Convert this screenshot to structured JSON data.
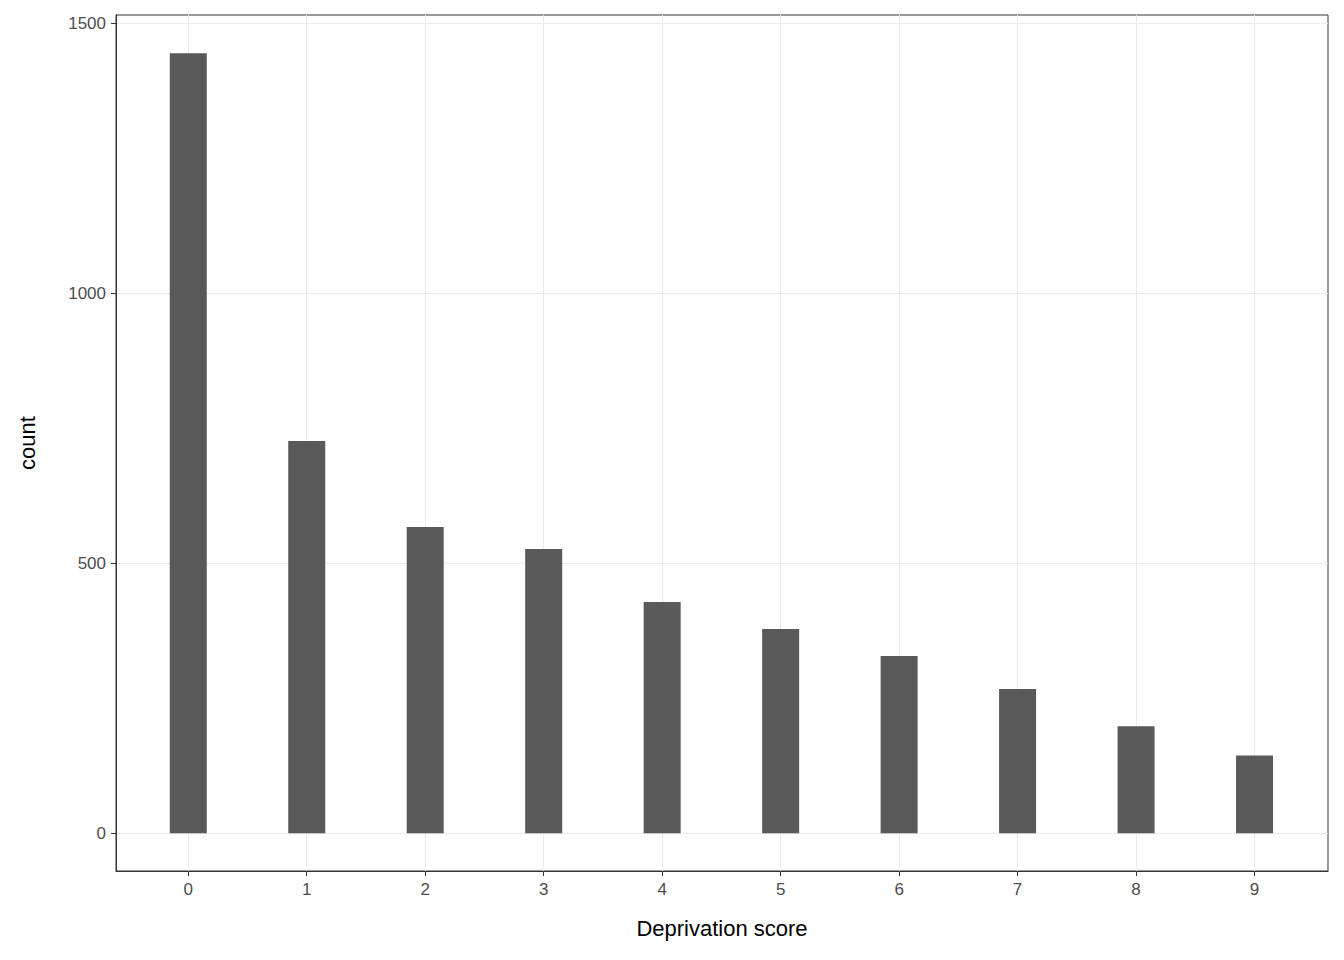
{
  "chart_data": {
    "type": "bar",
    "x_label": "Deprivation score",
    "y_label": "count",
    "x": [
      0,
      1,
      2,
      3,
      4,
      5,
      6,
      7,
      8,
      9
    ],
    "values": [
      1444,
      726,
      567,
      526,
      428,
      378,
      328,
      267,
      198,
      144
    ],
    "color": "#595959",
    "xlim": [
      -0.61,
      9.62
    ],
    "xticks": [
      0,
      1,
      2,
      3,
      4,
      5,
      6,
      7,
      8,
      9
    ],
    "ylim": [
      -70,
      1515
    ],
    "yticks": [
      0,
      500,
      1000,
      1500
    ],
    "grid": true
  }
}
